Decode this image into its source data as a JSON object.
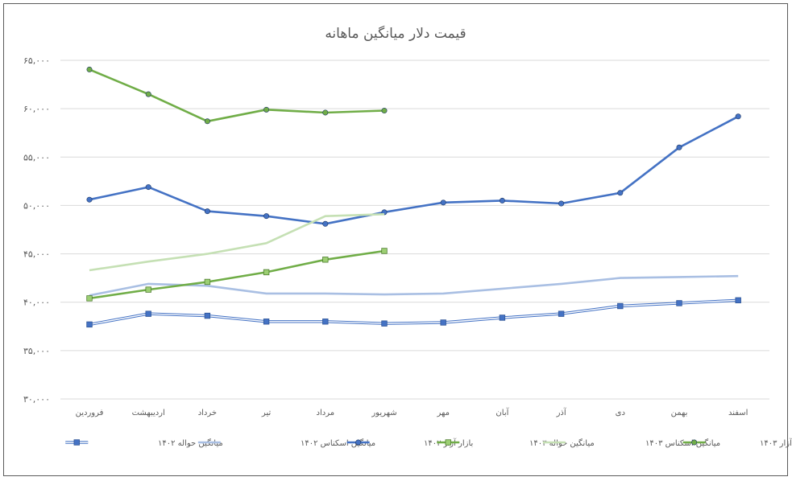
{
  "chart_data": {
    "type": "line",
    "title": "قیمت دلار میانگین ماهانه",
    "xlabel": "",
    "ylabel": "",
    "categories": [
      "فروردین",
      "اردیبهشت",
      "خرداد",
      "تیر",
      "مرداد",
      "شهریور",
      "مهر",
      "آبان",
      "آذر",
      "دی",
      "بهمن",
      "اسفند"
    ],
    "ylim": [
      30000,
      65000
    ],
    "yticks": [
      30000,
      35000,
      40000,
      45000,
      50000,
      55000,
      60000,
      65000
    ],
    "ytick_labels": [
      "۳۰,۰۰۰",
      "۳۵,۰۰۰",
      "۴۰,۰۰۰",
      "۴۵,۰۰۰",
      "۵۰,۰۰۰",
      "۵۵,۰۰۰",
      "۶۰,۰۰۰",
      "۶۵,۰۰۰"
    ],
    "grid": true,
    "legend_position": "bottom",
    "series": [
      {
        "name": "میانگین حواله ۱۴۰۲",
        "style": "double",
        "marker": "square",
        "color": "#4472c4",
        "values": [
          37700,
          38800,
          38600,
          38000,
          38000,
          37800,
          37900,
          38400,
          38800,
          39600,
          39900,
          40200
        ]
      },
      {
        "name": "میانگین اسکناس ۱۴۰۲",
        "style": "line",
        "marker": "none",
        "color": "#a9bfe3",
        "values": [
          40700,
          41900,
          41700,
          40900,
          40900,
          40800,
          40900,
          41400,
          41900,
          42500,
          42600,
          42700
        ]
      },
      {
        "name": "بازار آزار ۱۴۰۲",
        "style": "line",
        "marker": "circle",
        "color": "#4472c4",
        "values": [
          50600,
          51900,
          49400,
          48900,
          48100,
          49300,
          50300,
          50500,
          50200,
          51300,
          56000,
          59200
        ]
      },
      {
        "name": "میانگین حواله ۱۴۰۳",
        "style": "line",
        "marker": "square",
        "color": "#70ad47",
        "fill": "#9ccf73",
        "values": [
          40400,
          41300,
          42100,
          43100,
          44400,
          45300,
          null,
          null,
          null,
          null,
          null,
          null
        ]
      },
      {
        "name": "میانگین اسکناس ۱۴۰۳",
        "style": "line",
        "marker": "none",
        "color": "#c5e0b4",
        "values": [
          43300,
          44200,
          45000,
          46100,
          48900,
          49100,
          null,
          null,
          null,
          null,
          null,
          null
        ]
      },
      {
        "name": "بازار آزار ۱۴۰۳",
        "style": "line",
        "marker": "circle",
        "color": "#70ad47",
        "values": [
          64050,
          61500,
          58700,
          59900,
          59600,
          59800,
          null,
          null,
          null,
          null,
          null,
          null
        ]
      }
    ]
  }
}
